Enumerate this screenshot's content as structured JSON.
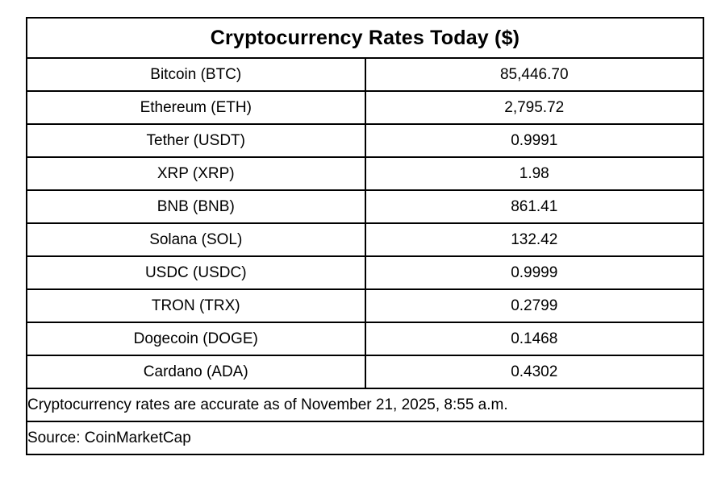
{
  "colors": {
    "border": "#000000",
    "text": "#000000",
    "background": "#ffffff"
  },
  "chart_data": {
    "type": "table",
    "title": "Cryptocurrency Rates Today ($)",
    "rows": [
      {
        "label": "Bitcoin (BTC)",
        "value": "85,446.70"
      },
      {
        "label": "Ethereum (ETH)",
        "value": "2,795.72"
      },
      {
        "label": "Tether (USDT)",
        "value": "0.9991"
      },
      {
        "label": "XRP (XRP)",
        "value": "1.98"
      },
      {
        "label": "BNB (BNB)",
        "value": "861.41"
      },
      {
        "label": "Solana (SOL)",
        "value": "132.42"
      },
      {
        "label": "USDC (USDC)",
        "value": "0.9999"
      },
      {
        "label": "TRON (TRX)",
        "value": "0.2799"
      },
      {
        "label": "Dogecoin (DOGE)",
        "value": "0.1468"
      },
      {
        "label": "Cardano (ADA)",
        "value": "0.4302"
      }
    ],
    "footnote": "Cryptocurrency rates are accurate as of November 21, 2025, 8:55 a.m.",
    "source": "Source: CoinMarketCap",
    "layout": {
      "grid": true,
      "title_row_spans_columns": true,
      "value_alignment": "center",
      "footer_alignment": "left"
    }
  }
}
